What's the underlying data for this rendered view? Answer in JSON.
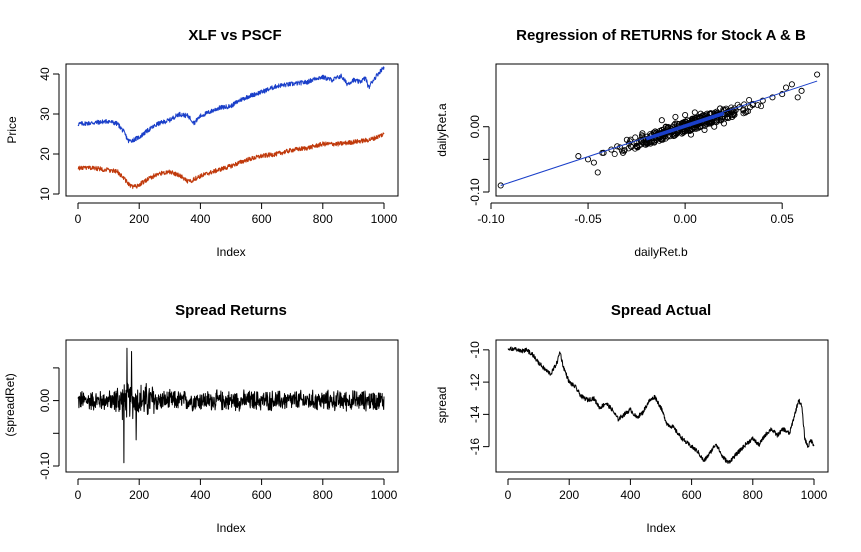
{
  "figure": {
    "panels": 4,
    "layout": "2x2",
    "background": "#ffffff"
  },
  "chart_data": [
    {
      "type": "line",
      "title": "XLF vs PSCF",
      "xlabel": "Index",
      "ylabel": "Price",
      "xlim": [
        0,
        1000
      ],
      "ylim": [
        10,
        42
      ],
      "x_ticks": [
        0,
        200,
        400,
        600,
        800,
        1000
      ],
      "y_ticks": [
        10,
        20,
        30,
        40
      ],
      "grid": false,
      "series": [
        {
          "color": "#1a3fc9",
          "x": [
            0,
            50,
            100,
            130,
            150,
            165,
            180,
            200,
            230,
            260,
            300,
            330,
            360,
            380,
            400,
            430,
            460,
            500,
            530,
            560,
            600,
            650,
            700,
            750,
            780,
            800,
            830,
            860,
            880,
            900,
            920,
            940,
            950,
            960,
            980,
            1000
          ],
          "values": [
            27.5,
            27.8,
            28.2,
            27.5,
            25.5,
            23.2,
            23.5,
            24.2,
            26.0,
            27.5,
            28.5,
            30.0,
            29.5,
            27.8,
            29.5,
            30.5,
            31.5,
            32.0,
            33.5,
            34.5,
            35.5,
            37.0,
            37.5,
            38.0,
            39.0,
            39.2,
            38.5,
            39.5,
            37.5,
            38.5,
            38.0,
            39.0,
            36.5,
            38.0,
            40.0,
            41.8
          ]
        },
        {
          "color": "#c0390b",
          "x": [
            0,
            50,
            100,
            130,
            150,
            170,
            190,
            200,
            230,
            260,
            300,
            330,
            360,
            400,
            450,
            500,
            550,
            600,
            650,
            700,
            750,
            800,
            850,
            900,
            950,
            970,
            1000
          ],
          "values": [
            16.5,
            16.5,
            16.0,
            15.5,
            14.0,
            12.0,
            11.8,
            12.3,
            13.8,
            15.0,
            15.5,
            14.8,
            13.0,
            14.5,
            15.8,
            17.0,
            18.5,
            19.5,
            20.0,
            21.0,
            21.5,
            22.5,
            22.5,
            23.0,
            23.5,
            24.0,
            25.0
          ]
        }
      ]
    },
    {
      "type": "scatter",
      "title": "Regression of RETURNS for Stock A & B",
      "xlabel": "dailyRet.b",
      "ylabel": "dailyRet.a",
      "xlim": [
        -0.1,
        0.07
      ],
      "ylim": [
        -0.1,
        0.09
      ],
      "x_ticks": [
        -0.1,
        -0.05,
        0.0,
        0.05
      ],
      "x_tick_labels": [
        "-0.10",
        "-0.05",
        "0.00",
        "0.05"
      ],
      "y_ticks": [
        -0.1,
        -0.05,
        0.0
      ],
      "y_tick_labels": [
        "-0.10",
        "",
        "0.00"
      ],
      "grid": false,
      "points": {
        "marker": "open-circle",
        "color": "#000000",
        "x": [
          -0.095,
          -0.055,
          -0.05,
          -0.045,
          -0.047,
          -0.042,
          -0.038,
          -0.035,
          -0.032,
          -0.03,
          -0.028,
          -0.025,
          -0.022,
          -0.02,
          -0.018,
          -0.015,
          -0.012,
          -0.01,
          -0.008,
          -0.005,
          -0.003,
          0.0,
          0.002,
          0.004,
          0.006,
          0.008,
          0.01,
          0.012,
          0.015,
          0.018,
          0.02,
          0.022,
          0.025,
          0.028,
          0.03,
          0.035,
          0.04,
          0.045,
          0.05,
          0.052,
          0.055,
          0.058,
          0.06,
          0.068,
          -0.025,
          -0.02,
          -0.015,
          -0.01,
          -0.005,
          0.0,
          0.005,
          0.01,
          0.015,
          0.02,
          -0.012,
          0.008,
          0.018,
          -0.022,
          0.003
        ],
        "y": [
          -0.09,
          -0.045,
          -0.05,
          -0.07,
          -0.055,
          -0.04,
          -0.035,
          -0.03,
          -0.04,
          -0.02,
          -0.03,
          -0.025,
          -0.01,
          -0.02,
          -0.015,
          -0.01,
          -0.005,
          0.0,
          -0.008,
          0.005,
          0.0,
          0.008,
          0.002,
          0.01,
          0.005,
          0.015,
          0.012,
          0.01,
          0.02,
          0.015,
          0.025,
          0.02,
          0.02,
          0.03,
          0.025,
          0.035,
          0.04,
          0.045,
          0.05,
          0.06,
          0.065,
          0.045,
          0.055,
          0.08,
          -0.03,
          -0.025,
          -0.02,
          -0.01,
          0.015,
          0.018,
          0.022,
          -0.005,
          0.0,
          0.005,
          0.01,
          0.02,
          0.028,
          -0.015,
          -0.012
        ]
      },
      "regression_line": {
        "color": "#1a3fc9",
        "x": [
          -0.095,
          0.068
        ],
        "y": [
          -0.09,
          0.07
        ]
      }
    },
    {
      "type": "line",
      "title": "Spread Returns",
      "xlabel": "Index",
      "ylabel": "(spreadRet)",
      "xlim": [
        0,
        1000
      ],
      "ylim": [
        -0.1,
        0.085
      ],
      "x_ticks": [
        0,
        200,
        400,
        600,
        800,
        1000
      ],
      "y_ticks": [
        -0.1,
        -0.05,
        0.0,
        0.05
      ],
      "y_tick_labels": [
        "-0.10",
        "",
        "0.00",
        ""
      ],
      "grid": false,
      "series": [
        {
          "color": "#000000",
          "style": "noise-around-zero",
          "amplitude_max": 0.04,
          "extremes": [
            {
              "x": 160,
              "value": 0.08
            },
            {
              "x": 150,
              "value": -0.095
            },
            {
              "x": 190,
              "value": -0.06
            },
            {
              "x": 175,
              "value": 0.075
            }
          ]
        }
      ]
    },
    {
      "type": "line",
      "title": "Spread Actual",
      "xlabel": "Index",
      "ylabel": "spread",
      "xlim": [
        0,
        1000
      ],
      "ylim": [
        -17.2,
        -9.7
      ],
      "x_ticks": [
        0,
        200,
        400,
        600,
        800,
        1000
      ],
      "y_ticks": [
        -16,
        -14,
        -12,
        -10
      ],
      "grid": false,
      "series": [
        {
          "color": "#000000",
          "x": [
            0,
            20,
            40,
            60,
            80,
            100,
            120,
            140,
            160,
            170,
            180,
            200,
            220,
            240,
            260,
            280,
            300,
            320,
            340,
            360,
            380,
            400,
            420,
            440,
            460,
            480,
            500,
            520,
            540,
            560,
            580,
            600,
            620,
            640,
            660,
            680,
            700,
            720,
            740,
            760,
            780,
            800,
            820,
            840,
            860,
            880,
            900,
            920,
            940,
            950,
            960,
            970,
            980,
            990,
            1000
          ],
          "values": [
            -10.0,
            -9.9,
            -10.1,
            -10.0,
            -10.3,
            -10.8,
            -11.2,
            -11.5,
            -10.8,
            -10.1,
            -11.0,
            -12.0,
            -12.3,
            -12.9,
            -13.1,
            -13.0,
            -13.6,
            -13.3,
            -13.7,
            -14.3,
            -14.0,
            -13.7,
            -14.2,
            -13.9,
            -13.2,
            -12.9,
            -13.6,
            -14.6,
            -14.8,
            -15.3,
            -15.7,
            -16.0,
            -16.3,
            -16.9,
            -16.4,
            -15.8,
            -16.6,
            -17.0,
            -16.6,
            -16.2,
            -15.8,
            -15.5,
            -15.9,
            -15.3,
            -14.9,
            -15.3,
            -14.9,
            -15.2,
            -13.8,
            -13.1,
            -13.5,
            -15.5,
            -16.0,
            -15.6,
            -15.9
          ]
        }
      ]
    }
  ]
}
